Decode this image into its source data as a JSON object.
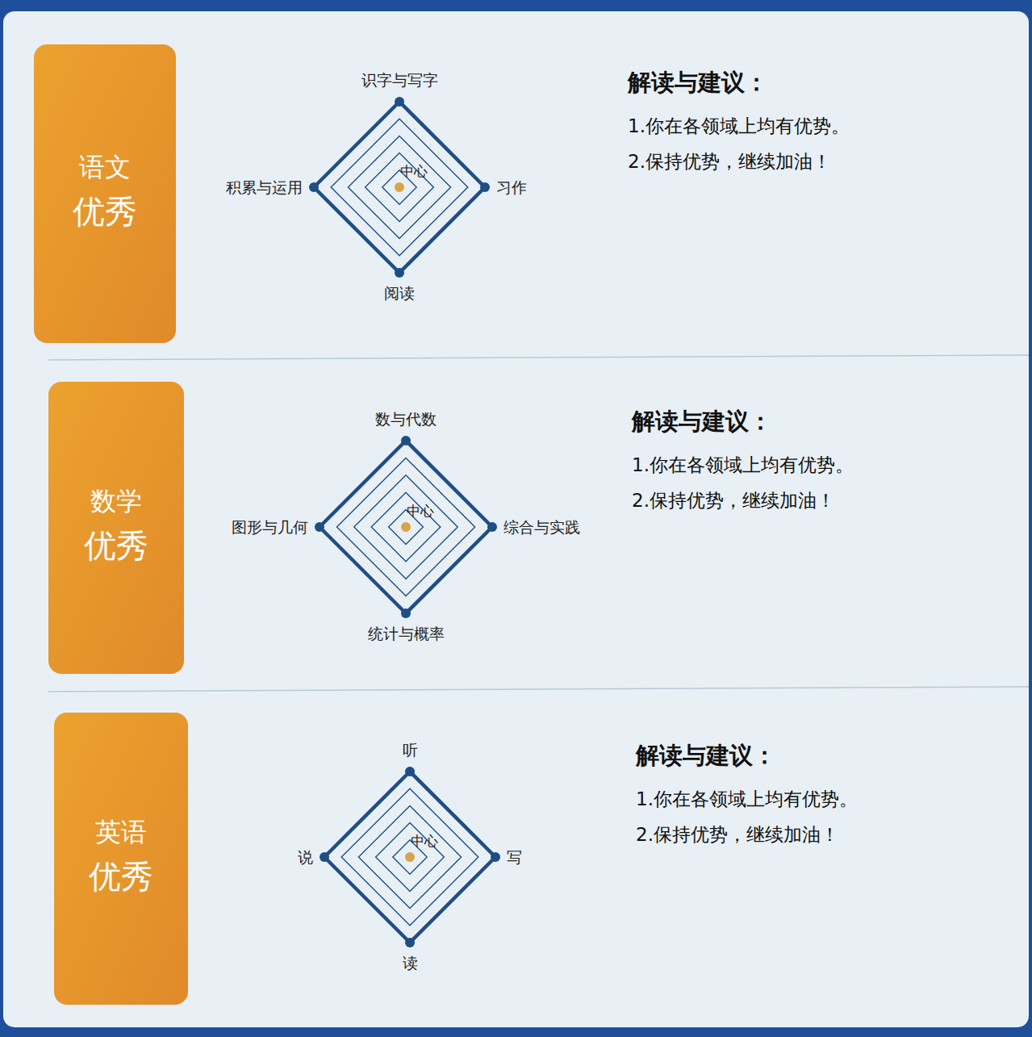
{
  "chart_data": [
    {
      "type": "radar",
      "title": "语文",
      "subtitle": "优秀",
      "categories": [
        "识字与写字",
        "习作",
        "阅读",
        "积累与运用"
      ],
      "values": [
        5,
        5,
        5,
        5
      ],
      "ylim": [
        0,
        5
      ],
      "yticks": [
        1,
        2,
        3,
        4,
        5
      ],
      "grid": true,
      "tick_labels": false,
      "color": "#1f4e85",
      "annotations": [
        "中心",
        "解读与建议：",
        "1.你在各领域上均有优势。",
        "2.保持优势，继续加油！"
      ]
    },
    {
      "type": "radar",
      "title": "数学",
      "subtitle": "优秀",
      "categories": [
        "数与代数",
        "综合与实践",
        "统计与概率",
        "图形与几何"
      ],
      "values": [
        5,
        5,
        5,
        5
      ],
      "ylim": [
        0,
        5
      ],
      "yticks": [
        1,
        2,
        3,
        4,
        5
      ],
      "grid": true,
      "tick_labels": false,
      "color": "#1f4e85",
      "annotations": [
        "中心",
        "解读与建议：",
        "1.你在各领域上均有优势。",
        "2.保持优势，继续加油！"
      ]
    },
    {
      "type": "radar",
      "title": "英语",
      "subtitle": "优秀",
      "categories": [
        "听",
        "写",
        "读",
        "说"
      ],
      "values": [
        5,
        5,
        5,
        5
      ],
      "ylim": [
        0,
        5
      ],
      "yticks": [
        1,
        2,
        3,
        4,
        5
      ],
      "grid": true,
      "tick_labels": false,
      "color": "#1f4e85",
      "annotations": [
        "中心",
        "解读与建议：",
        "1.你在各领域上均有优势。",
        "2.保持优势，继续加油！"
      ]
    }
  ]
}
